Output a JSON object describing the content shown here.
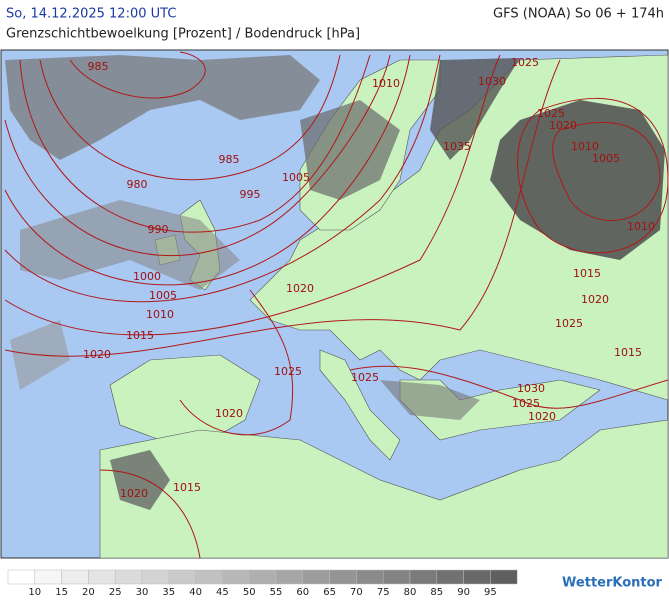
{
  "header": {
    "datetime": "So, 14.12.2025 12:00 UTC",
    "subtitle": "Grenzschichtbewoelkung [Prozent] / Bodendruck [hPa]",
    "model": "GFS (NOAA) So 06 + 174h"
  },
  "isobar_labels": [
    "985",
    "980",
    "985",
    "990",
    "995",
    "1000",
    "1005",
    "1010",
    "1015",
    "1020",
    "1005",
    "1010",
    "1030",
    "1025",
    "1025",
    "1020",
    "1035",
    "1010",
    "1005",
    "1010",
    "1015",
    "1020",
    "1025",
    "1015",
    "1020",
    "1025",
    "1025",
    "1030",
    "1025",
    "1020",
    "1020",
    "1015",
    "1020"
  ],
  "legend": {
    "ticks": [
      10,
      15,
      20,
      25,
      30,
      35,
      40,
      45,
      50,
      55,
      60,
      65,
      70,
      75,
      80,
      85,
      90,
      95
    ]
  },
  "logo": "WetterKontor"
}
